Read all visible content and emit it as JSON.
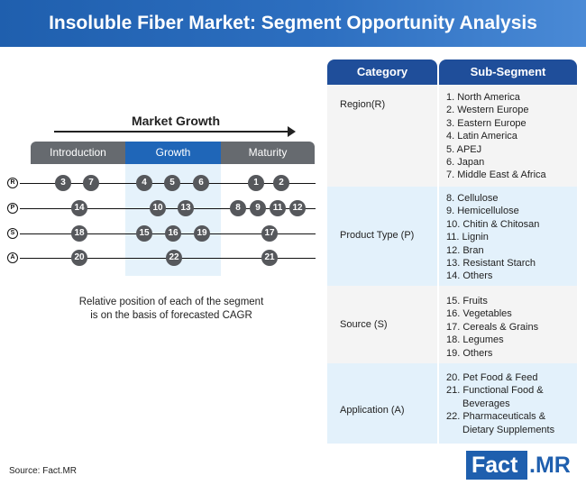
{
  "title": "Insoluble Fiber Market: Segment Opportunity Analysis",
  "diagram": {
    "arrow_label": "Market Growth",
    "stages": [
      "Introduction",
      "Growth",
      "Maturity"
    ],
    "rows": [
      {
        "letter": "R",
        "items": [
          "3",
          "7",
          "4",
          "5",
          "6",
          "1",
          "2"
        ]
      },
      {
        "letter": "P",
        "items": [
          "14",
          "10",
          "13",
          "8",
          "9",
          "11",
          "12"
        ]
      },
      {
        "letter": "S",
        "items": [
          "18",
          "15",
          "16",
          "19",
          "17"
        ]
      },
      {
        "letter": "A",
        "items": [
          "20",
          "22",
          "21"
        ]
      }
    ],
    "caption_line1": "Relative position of each of the segment",
    "caption_line2": "is on the basis of forecasted CAGR"
  },
  "table": {
    "header_category": "Category",
    "header_subsegment": "Sub-Segment",
    "sections": [
      {
        "category": "Region(R)",
        "items": [
          "1. North America",
          "2. Western Europe",
          "3. Eastern Europe",
          "4. Latin America",
          "5. APEJ",
          "6. Japan",
          "7. Middle East & Africa"
        ]
      },
      {
        "category": "Product Type (P)",
        "items": [
          "8. Cellulose",
          "9.  Hemicellulose",
          "10. Chitin & Chitosan",
          "11. Lignin",
          "12. Bran",
          "13. Resistant Starch",
          "14. Others"
        ]
      },
      {
        "category": "Source (S)",
        "items": [
          "15. Fruits",
          "16. Vegetables",
          "17. Cereals & Grains",
          "18. Legumes",
          "19. Others"
        ]
      },
      {
        "category": "Application (A)",
        "items": [
          "20. Pet Food & Feed",
          "21. Functional Food &",
          "Beverages",
          "22. Pharmaceuticals &",
          "Dietary Supplements"
        ]
      }
    ]
  },
  "source": "Source: Fact.MR",
  "logo": {
    "part1": "Fact",
    "part2": ".MR"
  },
  "colors": {
    "brand_blue": "#1f5fae",
    "table_header": "#1f4e9a",
    "stage_gray": "#666a6f",
    "growth_blue": "#1f66b8",
    "dot_gray": "#56585c",
    "row_tint": "#e3f1fb",
    "row_light": "#f4f4f4"
  }
}
